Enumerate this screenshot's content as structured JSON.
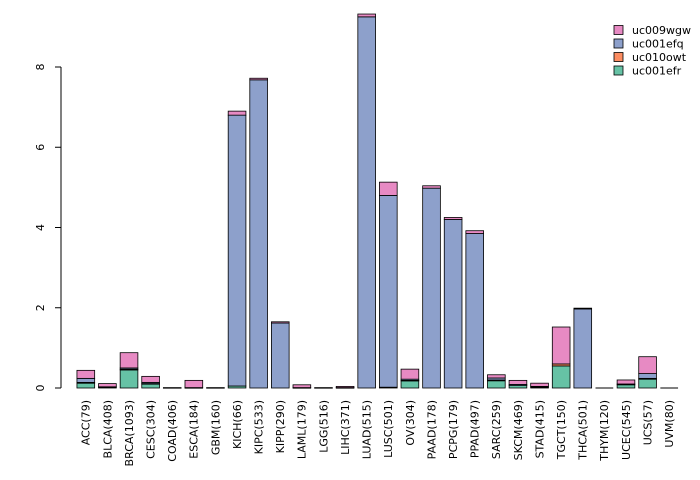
{
  "chart_data": {
    "type": "bar",
    "stacked": true,
    "categories": [
      "ACC(79)",
      "BLCA(408)",
      "BRCA(1093)",
      "CESC(304)",
      "COAD(406)",
      "ESCA(184)",
      "GBM(160)",
      "KICH(66)",
      "KIPC(533)",
      "KIPP(290)",
      "LAML(179)",
      "LGG(516)",
      "LIHC(371)",
      "LUAD(515)",
      "LUSC(501)",
      "OV(304)",
      "PAAD(178)",
      "PCPG(179)",
      "PPAD(497)",
      "SARC(259)",
      "SKCM(469)",
      "STAD(415)",
      "TGCT(150)",
      "THCA(501)",
      "THYM(120)",
      "UCEC(545)",
      "UCS(57)",
      "UVM(80)"
    ],
    "series": [
      {
        "name": "uc001efr",
        "color": "#66c2a5",
        "values": [
          0.12,
          0.02,
          0.45,
          0.1,
          0.01,
          0.01,
          0.01,
          0.05,
          0.0,
          0.0,
          0.01,
          0.01,
          0.01,
          0.0,
          0.02,
          0.18,
          0.0,
          0.0,
          0.0,
          0.18,
          0.06,
          0.02,
          0.55,
          0.0,
          0.0,
          0.08,
          0.22,
          0.0
        ]
      },
      {
        "name": "uc010owt",
        "color": "#fc8d62",
        "values": [
          0.02,
          0.0,
          0.02,
          0.01,
          0.0,
          0.0,
          0.0,
          0.0,
          0.0,
          0.0,
          0.0,
          0.0,
          0.0,
          0.0,
          0.0,
          0.01,
          0.0,
          0.0,
          0.0,
          0.02,
          0.0,
          0.0,
          0.05,
          0.0,
          0.0,
          0.0,
          0.02,
          0.0
        ]
      },
      {
        "name": "uc001efq",
        "color": "#8da0cb",
        "values": [
          0.1,
          0.01,
          0.03,
          0.03,
          0.0,
          0.0,
          0.0,
          6.75,
          7.68,
          1.62,
          0.0,
          0.0,
          0.0,
          9.25,
          4.78,
          0.03,
          4.98,
          4.2,
          3.85,
          0.05,
          0.03,
          0.02,
          0.0,
          1.97,
          0.0,
          0.02,
          0.12,
          0.0
        ]
      },
      {
        "name": "uc009wgw",
        "color": "#e78ac3",
        "values": [
          0.2,
          0.08,
          0.38,
          0.15,
          0.0,
          0.18,
          0.0,
          0.1,
          0.04,
          0.03,
          0.07,
          0.0,
          0.03,
          0.07,
          0.33,
          0.25,
          0.06,
          0.05,
          0.07,
          0.08,
          0.1,
          0.08,
          0.92,
          0.02,
          0.0,
          0.1,
          0.42,
          0.0
        ]
      }
    ],
    "legend_order": [
      "uc009wgw",
      "uc001efq",
      "uc010owt",
      "uc001efr"
    ],
    "legend_placement": "top-right",
    "yticks": [
      0,
      2,
      4,
      6,
      8
    ],
    "ylim": [
      0,
      9.4
    ],
    "grid": false,
    "title": "",
    "xlabel": "",
    "ylabel": ""
  }
}
